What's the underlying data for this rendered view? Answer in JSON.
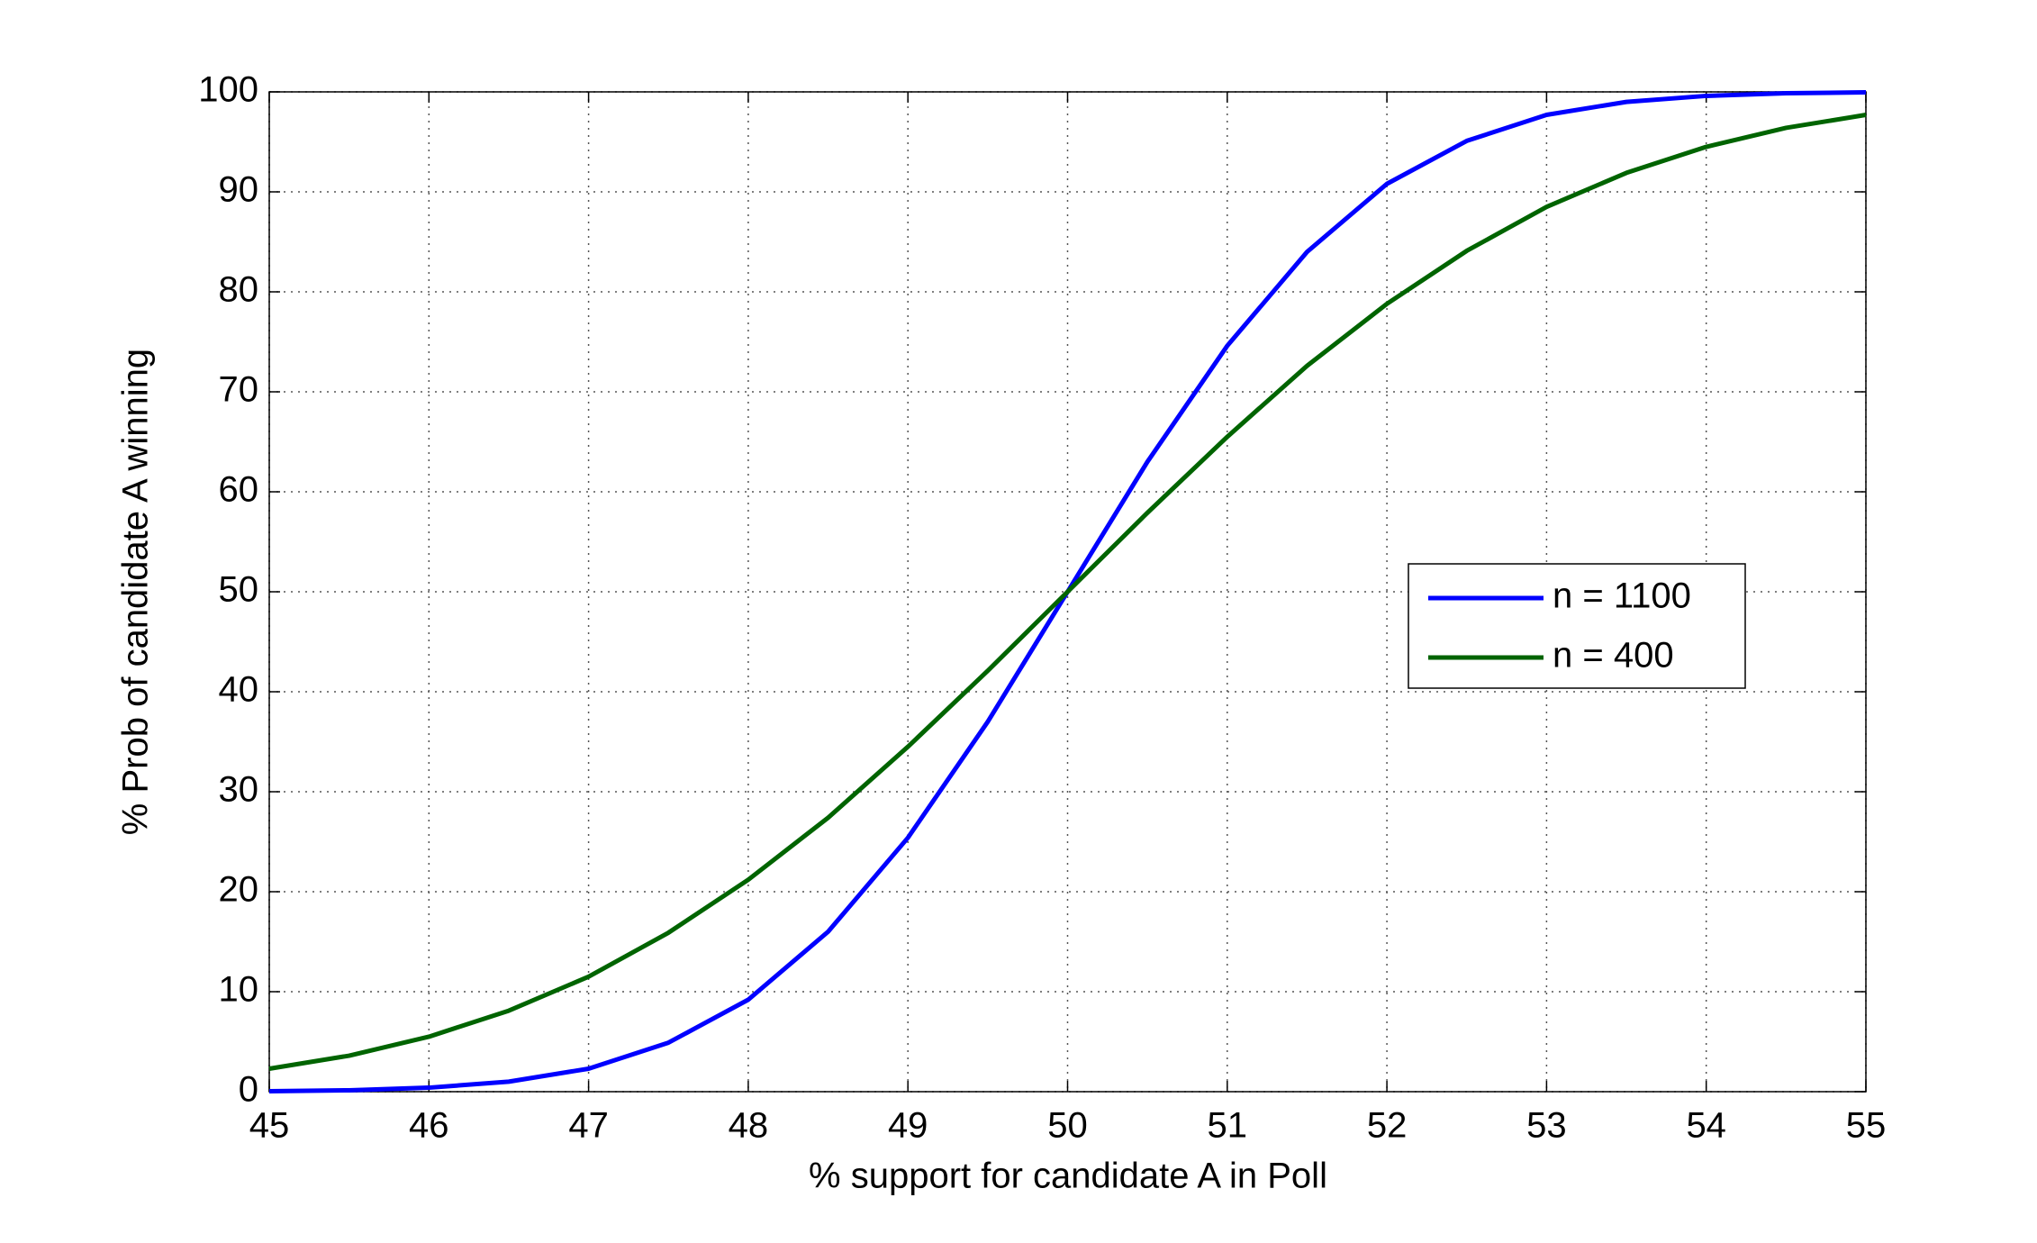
{
  "chart_data": {
    "type": "line",
    "xlabel": "% support for candidate A in Poll",
    "ylabel": "% Prob of candidate A winning",
    "x": [
      45,
      45.5,
      46,
      46.5,
      47,
      47.5,
      48,
      48.5,
      49,
      49.5,
      50,
      50.5,
      51,
      51.5,
      52,
      52.5,
      53,
      53.5,
      54,
      54.5,
      55
    ],
    "series": [
      {
        "name": "n = 1100",
        "color": "#0000ff",
        "values": [
          0.05,
          0.14,
          0.4,
          1.0,
          2.3,
          4.9,
          9.2,
          16.0,
          25.4,
          37.0,
          50,
          63.0,
          74.6,
          84.0,
          90.8,
          95.1,
          97.7,
          99.0,
          99.6,
          99.86,
          99.95
        ]
      },
      {
        "name": "n = 400",
        "color": "#006400",
        "values": [
          2.3,
          3.6,
          5.5,
          8.1,
          11.5,
          15.9,
          21.2,
          27.4,
          34.5,
          42.1,
          50,
          57.9,
          65.5,
          72.6,
          78.8,
          84.1,
          88.5,
          91.9,
          94.5,
          96.4,
          97.7
        ]
      }
    ],
    "xlim": [
      45,
      55
    ],
    "xticks": [
      45,
      46,
      47,
      48,
      49,
      50,
      51,
      52,
      53,
      54,
      55
    ],
    "ylim": [
      0,
      100
    ],
    "yticks": [
      0,
      10,
      20,
      30,
      40,
      50,
      60,
      70,
      80,
      90,
      100
    ],
    "grid": true,
    "legend": "right"
  }
}
